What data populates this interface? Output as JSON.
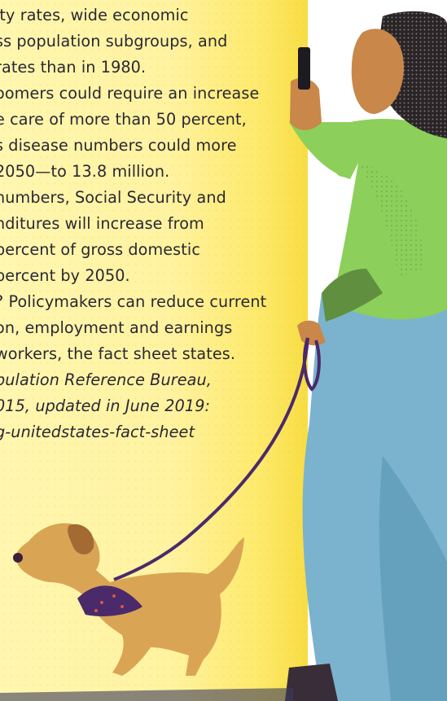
{
  "article": {
    "lines": [
      "ity rates, wide economic",
      "ss population subgroups, and",
      "rates than in 1980.",
      "oomers could require an increase",
      "e care of more than 50 percent,",
      "s disease numbers could more",
      " 2050—to 13.8 million.",
      "numbers, Social Security and",
      "nditures will increase from",
      " percent of gross domestic",
      " percent by 2050.",
      "? Policymakers can reduce current",
      "on, employment and earnings",
      " workers, the fact sheet states."
    ],
    "source_lines": [
      "pulation Reference Bureau,",
      "015, updated in June 2019:",
      "g-unitedstates-fact-sheet"
    ]
  },
  "colors": {
    "panel_yellow": "#fff3a1",
    "text": "#2b2633",
    "sweater_green": "#8ccf5a",
    "pants_blue": "#7bb3cf",
    "skin": "#c9874a",
    "dog": "#d9a554",
    "leash_purple": "#4a2a6b"
  },
  "illustration": {
    "figure": "woman-walking-dog",
    "icons": [
      "phone-icon",
      "dog-icon",
      "leash-icon"
    ]
  }
}
